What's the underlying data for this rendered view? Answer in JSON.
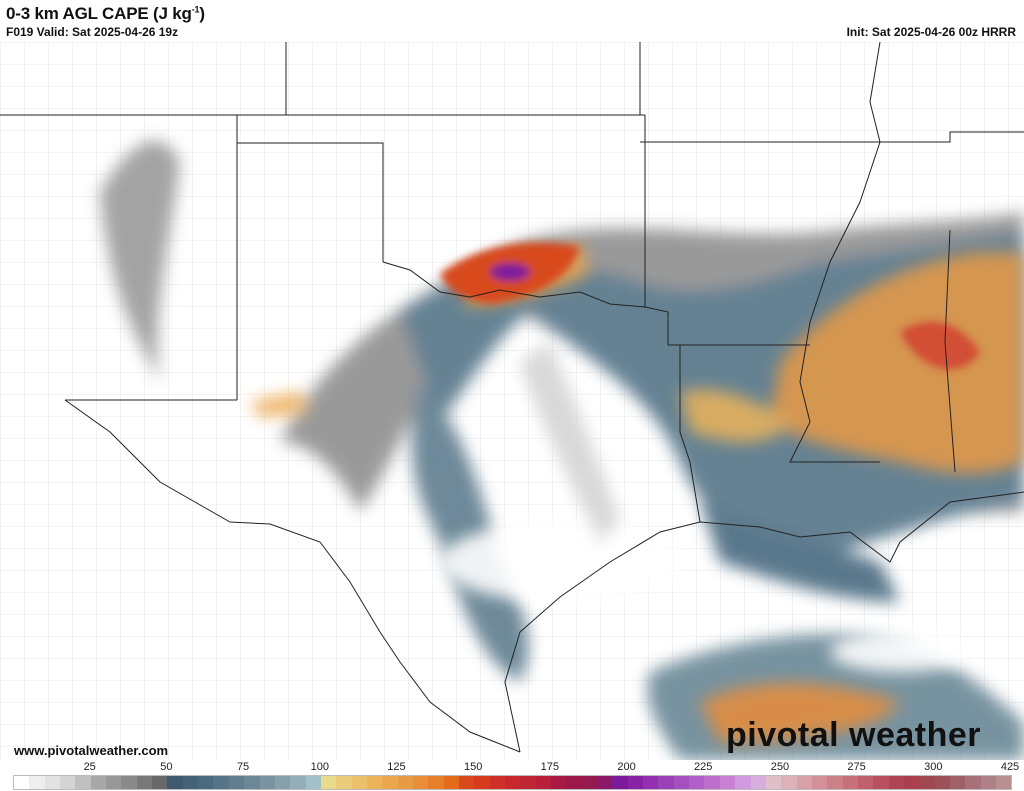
{
  "header": {
    "title": "0-3 km AGL CAPE (J kg",
    "title_sup": "-1",
    "title_end": ")",
    "valid": "F019 Valid: Sat 2025-04-26 19z",
    "init": "Init: Sat 2025-04-26 00z HRRR"
  },
  "footer": {
    "website": "www.pivotalweather.com",
    "logo": "pivotal weather"
  },
  "colorbar": {
    "labels": [
      "25",
      "50",
      "75",
      "100",
      "125",
      "150",
      "175",
      "200",
      "225",
      "250",
      "275",
      "300",
      "425"
    ],
    "colors": [
      "#ffffff",
      "#eeeeee",
      "#e2e2e2",
      "#d4d4d4",
      "#c0c0c0",
      "#a8a8a8",
      "#989898",
      "#8a8a8a",
      "#787878",
      "#686868",
      "#3f5a70",
      "#44607a",
      "#4a6a80",
      "#557488",
      "#5f7d8e",
      "#6b8896",
      "#7993a0",
      "#88a0aa",
      "#95afb8",
      "#a3c0c8",
      "#e8dc8c",
      "#eacb7a",
      "#ebc06a",
      "#ecb45a",
      "#eba74e",
      "#e99a44",
      "#e88d3a",
      "#e57f2a",
      "#e36a1a",
      "#d84a1e",
      "#d83a1e",
      "#d0302a",
      "#c8282a",
      "#c02632",
      "#b81f38",
      "#a81a44",
      "#9c1848",
      "#941a50",
      "#8a1a68",
      "#7e1a9a",
      "#8a22a8",
      "#9430b0",
      "#9c40b8",
      "#a450c0",
      "#b060c8",
      "#bc70cc",
      "#c880d4",
      "#d09ade",
      "#d8aee0",
      "#e0c0c8",
      "#deb0b8",
      "#d8a0a8",
      "#d49098",
      "#cc8088",
      "#c8707a",
      "#c0606c",
      "#b85060",
      "#b04456",
      "#a8404e",
      "#a04850",
      "#9c5058",
      "#a06068",
      "#a87078",
      "#b08088",
      "#b89090"
    ]
  },
  "map": {
    "field": "0-3 km AGL CAPE",
    "border_color": "#222222",
    "county_color": "#bbbbbb"
  }
}
